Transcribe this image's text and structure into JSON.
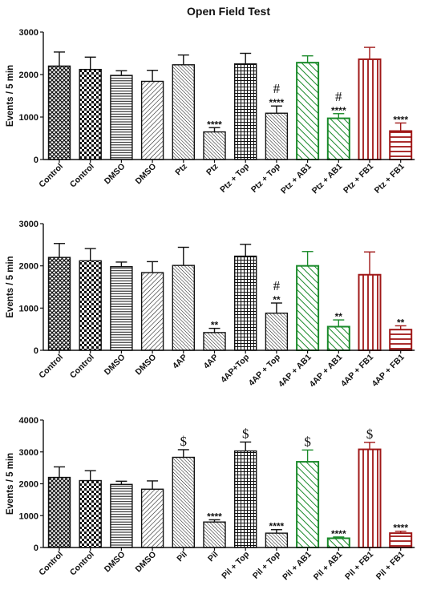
{
  "figure_title": "Open Field Test",
  "colors": {
    "black": "#111111",
    "green": "#1a8a2a",
    "red": "#a01818"
  },
  "chart_data": [
    {
      "type": "bar",
      "ylabel": "Events / 5 min",
      "ylim": [
        0,
        3000
      ],
      "yticks": [
        0,
        1000,
        2000,
        3000
      ],
      "categories": [
        "Control",
        "Control",
        "DMSO",
        "DMSO",
        "Ptz",
        "Ptz",
        "Ptz + Top",
        "Ptz + Top",
        "Ptz + AB1",
        "Ptz + AB1",
        "Ptz + FB1",
        "Ptz + FB1"
      ],
      "values": [
        2200,
        2120,
        1980,
        1840,
        2230,
        650,
        2250,
        1090,
        2280,
        970,
        2360,
        670
      ],
      "errors": [
        330,
        290,
        110,
        260,
        230,
        100,
        250,
        170,
        160,
        110,
        280,
        190
      ],
      "patterns": [
        "cross",
        "check",
        "hstripe",
        "dstripe",
        "dense",
        "dense",
        "grid",
        "dense",
        "green-diag",
        "green-diag",
        "red-vert",
        "red-horiz"
      ],
      "colors": [
        "black",
        "black",
        "black",
        "black",
        "black",
        "black",
        "black",
        "black",
        "green",
        "green",
        "red",
        "red"
      ],
      "annotations": [
        "",
        "",
        "",
        "",
        "",
        "****",
        "",
        "****|#",
        "",
        "****|#",
        "",
        "****"
      ]
    },
    {
      "type": "bar",
      "ylabel": "Events / 5 min",
      "ylim": [
        0,
        3000
      ],
      "yticks": [
        0,
        1000,
        2000,
        3000
      ],
      "categories": [
        "Control",
        "Control",
        "DMSO",
        "DMSO",
        "4AP",
        "4AP",
        "4AP+Top",
        "4AP + Top",
        "4AP + AB1",
        "4AP + AB1",
        "4AP + FB1",
        "4AP + FB1"
      ],
      "values": [
        2200,
        2120,
        1980,
        1840,
        2010,
        420,
        2230,
        880,
        2000,
        560,
        1790,
        490
      ],
      "errors": [
        330,
        290,
        110,
        260,
        430,
        100,
        280,
        240,
        340,
        160,
        540,
        90
      ],
      "patterns": [
        "cross",
        "check",
        "hstripe",
        "dstripe",
        "dense",
        "dense",
        "grid",
        "dense",
        "green-diag",
        "green-diag",
        "red-vert",
        "red-horiz"
      ],
      "colors": [
        "black",
        "black",
        "black",
        "black",
        "black",
        "black",
        "black",
        "black",
        "green",
        "green",
        "red",
        "red"
      ],
      "annotations": [
        "",
        "",
        "",
        "",
        "",
        "**",
        "",
        "**|#",
        "",
        "**",
        "",
        "**"
      ]
    },
    {
      "type": "bar",
      "ylabel": "Events / 5 min",
      "ylim": [
        0,
        4000
      ],
      "yticks": [
        0,
        1000,
        2000,
        3000,
        4000
      ],
      "categories": [
        "Control",
        "Control",
        "DMSO",
        "DMSO",
        "Pil",
        "Pil",
        "Pil + Top",
        "Pil + Top",
        "Pil + AB1",
        "Pil + AB1",
        "Pil + FB1",
        "Pil + FB1"
      ],
      "values": [
        2200,
        2100,
        1980,
        1830,
        2830,
        800,
        3030,
        450,
        2690,
        290,
        3080,
        450
      ],
      "errors": [
        330,
        310,
        100,
        260,
        240,
        70,
        280,
        110,
        370,
        40,
        220,
        60
      ],
      "patterns": [
        "cross",
        "check",
        "hstripe",
        "dstripe",
        "dense",
        "dense",
        "grid",
        "dense",
        "green-diag",
        "green-diag",
        "red-vert",
        "red-horiz"
      ],
      "colors": [
        "black",
        "black",
        "black",
        "black",
        "black",
        "black",
        "black",
        "black",
        "green",
        "green",
        "red",
        "red"
      ],
      "annotations": [
        "",
        "",
        "",
        "",
        "$",
        "****",
        "$",
        "****",
        "$",
        "****",
        "$",
        "****"
      ]
    }
  ]
}
